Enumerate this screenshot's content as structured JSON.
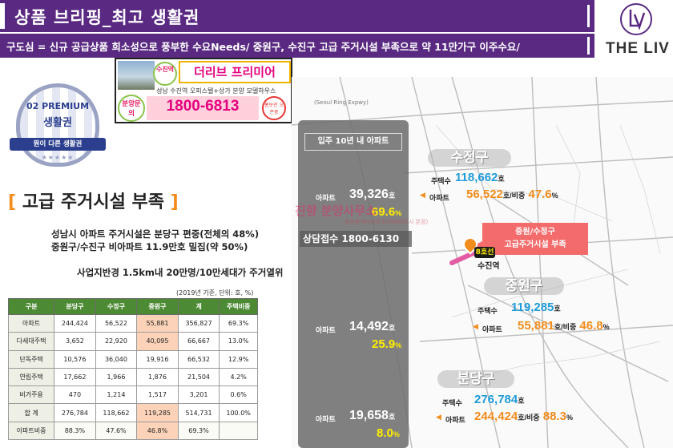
{
  "header": {
    "title": "상품 브리핑_최고 생활권",
    "subtitle": "구도심 = 신규 공급상품 희소성으로 풍부한 수요Needs/ 중원구, 수진구 고급 주거시설 부족으로 약 11만가구 이주수요/"
  },
  "logo": {
    "text": "THE LIV"
  },
  "ad": {
    "station_badge": "수진역",
    "name": "더리브 프리미어",
    "desc": "성남 수진역 오피스텔+상가 분양 모델하우스",
    "inquiry_badge": "분양문의",
    "phone": "1800-6813",
    "stamp": "홍보관 오픈중"
  },
  "premium": {
    "line1": "02 PREMIUM",
    "line2": "생활권",
    "ribbon": "뭔이 다른 생활권",
    "stars": "★★★★★"
  },
  "section": {
    "bracket_open": "[",
    "heading": " 고급 주거시설 부족 ",
    "bracket_close": "]",
    "line1": "성남시 아파트 주거시설은 분당구 편중(전체의 48%)",
    "line2": "중원구/수진구 비아파트 11.9만호 밀집(약 50%)",
    "line3": "사업지반경 1.5km내 20만명/10만세대가 주거열위"
  },
  "table": {
    "note": "(2019년 기준, 단위: 호, %)",
    "headers": [
      "구분",
      "분당구",
      "수정구",
      "중원구",
      "계",
      "주택비중"
    ],
    "rows": [
      [
        "아파트",
        "244,424",
        "56,522",
        "55,881",
        "356,827",
        "69.3%"
      ],
      [
        "다세대주택",
        "3,652",
        "22,920",
        "40,095",
        "66,667",
        "13.0%"
      ],
      [
        "단독주택",
        "10,576",
        "36,040",
        "19,916",
        "66,532",
        "12.9%"
      ],
      [
        "연립주택",
        "17,662",
        "1,966",
        "1,876",
        "21,504",
        "4.2%"
      ],
      [
        "비거주용",
        "470",
        "1,214",
        "1,517",
        "3,201",
        "0.6%"
      ],
      [
        "합   계",
        "276,784",
        "118,662",
        "119,285",
        "514,731",
        "100.0%"
      ],
      [
        "아파트비중",
        "88.3%",
        "47.6%",
        "46.8%",
        "69.3%",
        ""
      ]
    ]
  },
  "panel": {
    "head": "입주 10년 내 아파트",
    "label": "아파트",
    "unit": "호",
    "pct_unit": "%",
    "items": [
      {
        "value": "39,326",
        "pct": "69.6"
      },
      {
        "value": "14,492",
        "pct": "25.9"
      },
      {
        "value": "19,658",
        "pct": "8.0"
      }
    ]
  },
  "watermark": {
    "brand": "진향 분양사무소",
    "note": "공인중개사사무소(위례신도시 본점)",
    "contact": "상담접수 1800-6130"
  },
  "districts": {
    "house_label": "주택수",
    "apt_label": "아파트",
    "ratio_label": "호/비중",
    "unit": "호",
    "pct_unit": "%",
    "sujeong": {
      "name": "수정구",
      "houses": "118,662",
      "apts": "56,522",
      "ratio": "47.6"
    },
    "jungwon": {
      "name": "중원구",
      "houses": "119,285",
      "apts": "55,881",
      "ratio": "46.8"
    },
    "bundang": {
      "name": "분당구",
      "houses": "276,784",
      "apts": "244,424",
      "ratio": "88.3"
    }
  },
  "callout": {
    "line1": "중원/수정구",
    "line2": "고급주거시설 부족"
  },
  "station": {
    "line": "8호선",
    "name": "수진역"
  },
  "map_labels": {
    "expressway": "(Seoul Ring Expwy)"
  },
  "colors": {
    "header_purple": "#5a2a82",
    "table_green": "#4c8a34",
    "accent_orange": "#f28c1c",
    "accent_blue": "#1f9bd7",
    "highlight_pink": "#e6007e"
  }
}
